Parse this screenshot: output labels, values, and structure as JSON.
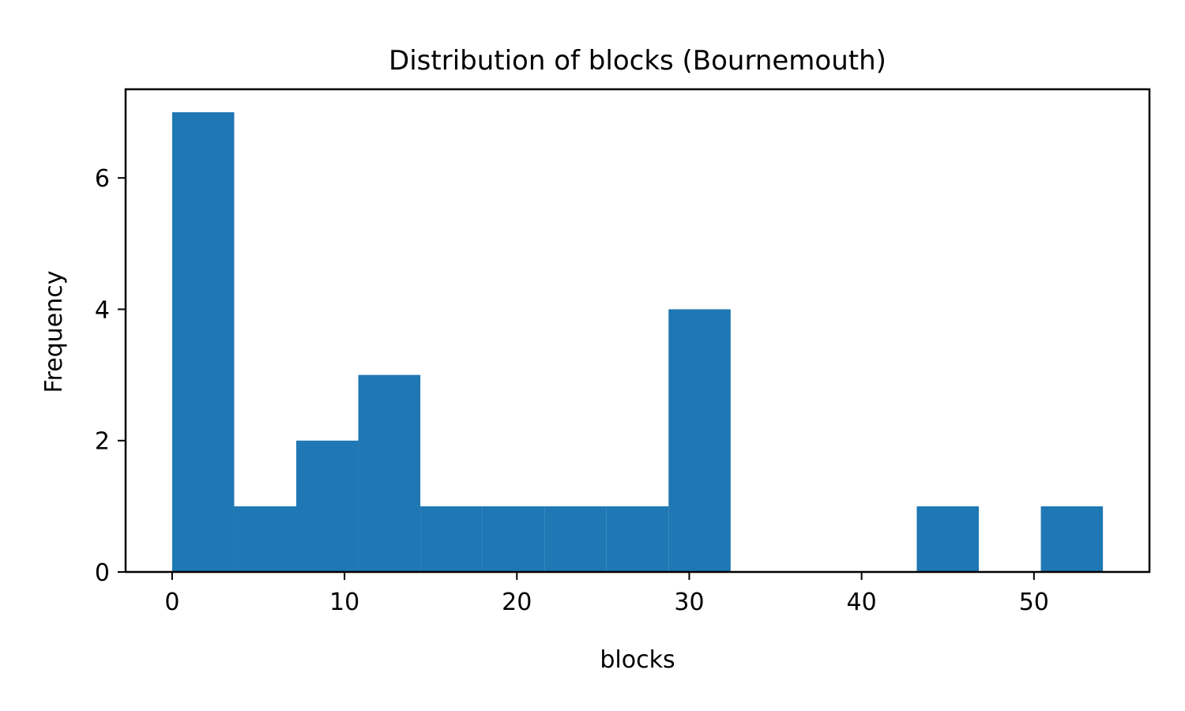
{
  "chart_data": {
    "type": "bar",
    "title": "Distribution of blocks (Bournemouth)",
    "xlabel": "blocks",
    "ylabel": "Frequency",
    "bin_edges": [
      0,
      3.6,
      7.2,
      10.8,
      14.4,
      18.0,
      21.6,
      25.2,
      28.8,
      32.4,
      36.0,
      39.6,
      43.2,
      46.8,
      50.4,
      54.0
    ],
    "values": [
      7,
      1,
      2,
      3,
      1,
      1,
      1,
      1,
      4,
      0,
      0,
      0,
      1,
      0,
      1
    ],
    "xlim": [
      -2.7,
      56.7
    ],
    "ylim": [
      0,
      7.35
    ],
    "xticks": [
      0,
      10,
      20,
      30,
      40,
      50
    ],
    "yticks": [
      0,
      2,
      4,
      6
    ],
    "bar_color": "#1f77b4",
    "grid": false,
    "legend": "none"
  }
}
